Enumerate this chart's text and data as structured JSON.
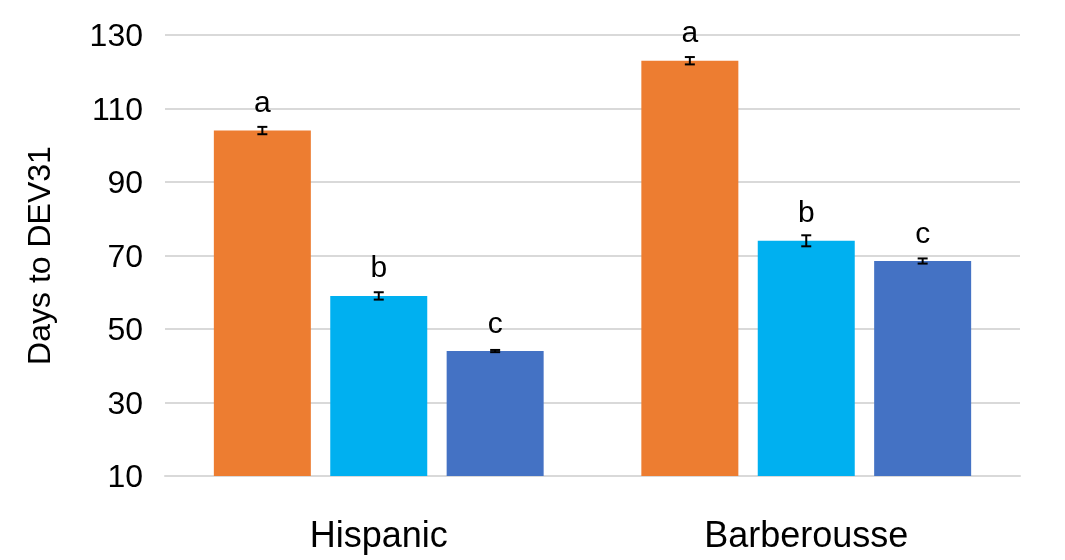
{
  "chart_data": {
    "type": "bar",
    "ylabel": "Days to DEV31",
    "categories": [
      "Hispanic",
      "Barberousse"
    ],
    "series": [
      {
        "color": "#ed7d31",
        "values": [
          104,
          123
        ],
        "errors": [
          1,
          1
        ],
        "value_labels": [
          "a",
          "a"
        ]
      },
      {
        "color": "#00b0f0",
        "values": [
          59,
          74
        ],
        "errors": [
          1,
          1.5
        ],
        "value_labels": [
          "b",
          "b"
        ]
      },
      {
        "color": "#4472c4",
        "values": [
          44,
          68.5
        ],
        "errors": [
          0.3,
          0.7
        ],
        "value_labels": [
          "c",
          "c"
        ]
      }
    ],
    "ylim": [
      10,
      130
    ],
    "yticks": [
      10,
      30,
      50,
      70,
      90,
      110,
      130
    ],
    "grid": "y"
  }
}
